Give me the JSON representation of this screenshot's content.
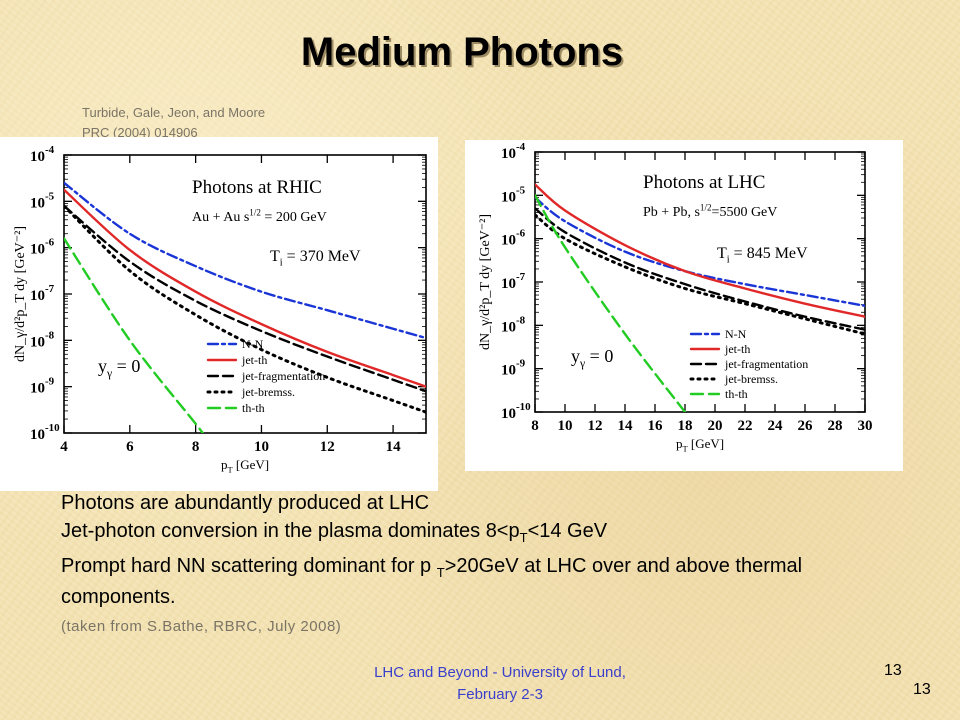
{
  "slide": {
    "title": "Medium Photons",
    "citation_line1": "Turbide, Gale, Jeon, and Moore",
    "citation_line2": "PRC (2004) 014906",
    "bullets": [
      {
        "pre": "Photons are abundantly produced at LHC",
        "sub": "",
        "post": ""
      },
      {
        "pre": "Jet-photon conversion in the plasma dominates 8<p",
        "sub": "T",
        "post": "<14 GeV"
      },
      {
        "pre": "Prompt hard NN scattering dominant for p ",
        "sub": "T",
        "post": ">20GeV at LHC over and above thermal components."
      }
    ],
    "source": "(taken from S.Bathe, RBRC, July 2008)",
    "footer_line1": "LHC and Beyond - University of Lund,",
    "footer_line2": "February 2-3",
    "page_number_a": "13",
    "page_number_b": "13"
  },
  "chart_data": [
    {
      "type": "line",
      "title": "Photons at RHIC",
      "subtitle": "Au + Au s^1/2 = 200 GeV",
      "annotation_temp": "T_i = 370 MeV",
      "annotation_y": "y_γ = 0",
      "xlabel": "p_T [GeV]",
      "ylabel": "dN_γ/d²p_T dy [GeV⁻²]",
      "xlim": [
        4,
        15
      ],
      "ylim_log10": [
        -10,
        -4
      ],
      "y_scale": "log",
      "xticks": [
        4,
        6,
        8,
        10,
        12,
        14
      ],
      "ytick_exponents": [
        -10,
        -9,
        -8,
        -7,
        -6,
        -5,
        -4
      ],
      "ytick_base": "10",
      "legend_position": "bottom-right",
      "series": [
        {
          "name": "N-N",
          "color": "#1a35d6",
          "dash": "dashdot",
          "x": [
            4,
            6,
            8,
            10,
            12,
            14,
            15
          ],
          "log10y": [
            -4.6,
            -5.7,
            -6.4,
            -6.95,
            -7.35,
            -7.75,
            -7.95
          ]
        },
        {
          "name": "jet-th",
          "color": "#e02828",
          "dash": "solid",
          "x": [
            4,
            6,
            8,
            10,
            12,
            14,
            15
          ],
          "log10y": [
            -4.75,
            -6.05,
            -6.95,
            -7.65,
            -8.25,
            -8.75,
            -9.0
          ]
        },
        {
          "name": "jet-fragmentation",
          "color": "#000000",
          "dash": "dash",
          "x": [
            4,
            6,
            8,
            10,
            12,
            14,
            15
          ],
          "log10y": [
            -5.1,
            -6.3,
            -7.15,
            -7.8,
            -8.35,
            -8.85,
            -9.1
          ]
        },
        {
          "name": "jet-bremss.",
          "color": "#000000",
          "dash": "dot",
          "x": [
            4,
            6,
            8,
            10,
            12,
            14,
            15
          ],
          "log10y": [
            -5.1,
            -6.5,
            -7.45,
            -8.2,
            -8.8,
            -9.3,
            -9.55
          ]
        },
        {
          "name": "th-th",
          "color": "#22cc22",
          "dash": "longdash",
          "x": [
            4,
            6,
            8,
            8.2
          ],
          "log10y": [
            -5.8,
            -8.0,
            -9.8,
            -10.0
          ]
        }
      ]
    },
    {
      "type": "line",
      "title": "Photons at LHC",
      "subtitle": "Pb + Pb, s^1/2=5500 GeV",
      "annotation_temp": "T_i = 845 MeV",
      "annotation_y": "y_γ = 0",
      "xlabel": "p_T [GeV]",
      "ylabel": "dN_γ/d²p_T dy [GeV⁻²]",
      "xlim": [
        8,
        30
      ],
      "ylim_log10": [
        -10,
        -4
      ],
      "y_scale": "log",
      "xticks": [
        8,
        10,
        12,
        14,
        16,
        18,
        20,
        22,
        24,
        26,
        28,
        30
      ],
      "ytick_exponents": [
        -10,
        -9,
        -8,
        -7,
        -6,
        -5,
        -4
      ],
      "ytick_base": "10",
      "legend_position": "bottom-right",
      "series": [
        {
          "name": "N-N",
          "color": "#1a35d6",
          "dash": "dashdot",
          "x": [
            8,
            10,
            14,
            18,
            22,
            26,
            30
          ],
          "log10y": [
            -5.05,
            -5.6,
            -6.3,
            -6.75,
            -7.05,
            -7.3,
            -7.55
          ]
        },
        {
          "name": "jet-th",
          "color": "#e02828",
          "dash": "solid",
          "x": [
            8,
            10,
            14,
            18,
            22,
            26,
            30
          ],
          "log10y": [
            -4.75,
            -5.35,
            -6.15,
            -6.75,
            -7.15,
            -7.5,
            -7.8
          ]
        },
        {
          "name": "jet-fragmentation",
          "color": "#000000",
          "dash": "dash",
          "x": [
            8,
            10,
            14,
            18,
            22,
            26,
            30
          ],
          "log10y": [
            -5.3,
            -5.85,
            -6.55,
            -7.05,
            -7.45,
            -7.8,
            -8.1
          ]
        },
        {
          "name": "jet-bremss.",
          "color": "#000000",
          "dash": "dot",
          "x": [
            8,
            10,
            14,
            18,
            22,
            26,
            30
          ],
          "log10y": [
            -5.45,
            -6.0,
            -6.65,
            -7.15,
            -7.5,
            -7.85,
            -8.2
          ]
        },
        {
          "name": "th-th",
          "color": "#22cc22",
          "dash": "longdash",
          "x": [
            8,
            10,
            14,
            18
          ],
          "log10y": [
            -5.0,
            -6.2,
            -8.2,
            -10.0
          ]
        }
      ]
    }
  ]
}
